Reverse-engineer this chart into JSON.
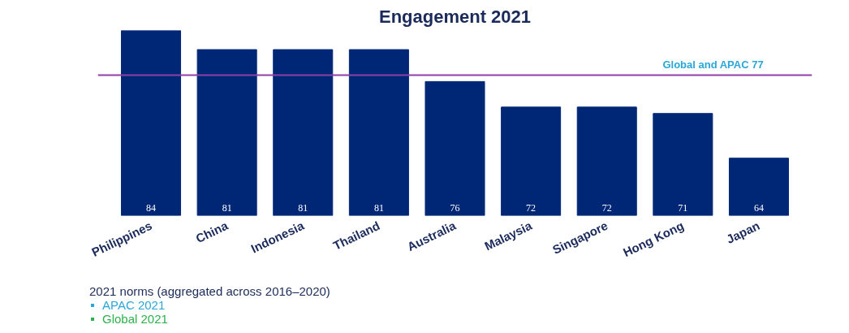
{
  "chart_data": {
    "type": "bar",
    "title": "Engagement 2021",
    "categories": [
      "Philippines",
      "China",
      "Indonesia",
      "Thailand",
      "Australia",
      "Malaysia",
      "Singapore",
      "Hong Kong",
      "Japan"
    ],
    "values": [
      84,
      81,
      81,
      81,
      76,
      72,
      72,
      71,
      64
    ],
    "color": "#002776",
    "ylim": [
      55,
      84
    ],
    "tick_labels": "x",
    "data_labels": true,
    "grid": false,
    "ref_lines": [
      {
        "axis": "y",
        "value": 77,
        "label": "Global and APAC 77",
        "color": "#8e3fa8"
      }
    ],
    "annotations": [
      "2021 norms (aggregated across 2016–2020)",
      "APAC 2021",
      "Global 2021"
    ]
  }
}
